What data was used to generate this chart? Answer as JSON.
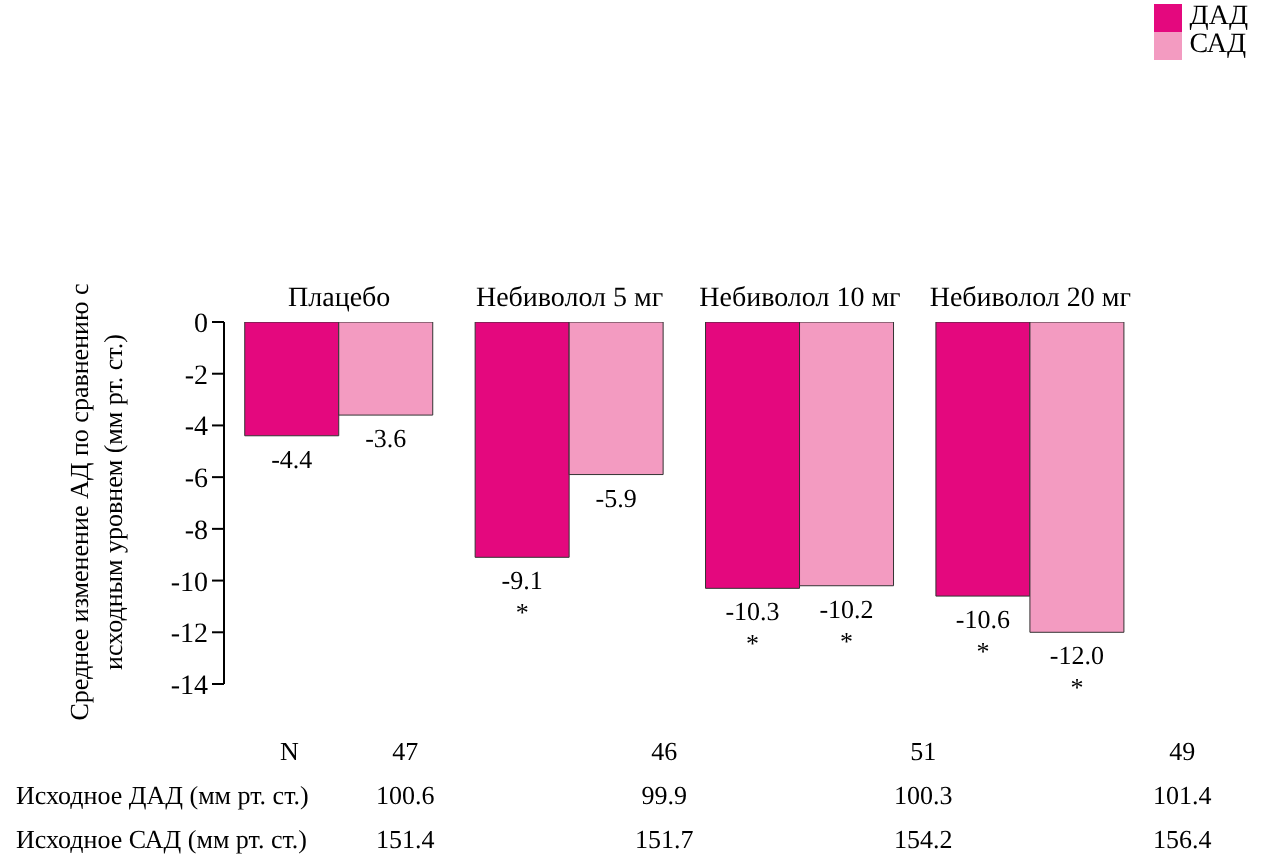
{
  "chart_data": {
    "type": "bar",
    "ylabel": "Среднее изменение АД по сравнению с исходным уровнем (мм рт. ст.)",
    "categories": [
      "Плацебо",
      "Небиволол 5 мг",
      "Небиволол 10 мг",
      "Небиволол 20 мг"
    ],
    "series": [
      {
        "name": "ДАД",
        "color": "#e4087e",
        "values": [
          -4.4,
          -9.1,
          -10.3,
          -10.6
        ],
        "value_labels": [
          "-4.4",
          "-9.1 *",
          "-10.3 *",
          "-10.6 *"
        ]
      },
      {
        "name": "САД",
        "color": "#f39bc1",
        "values": [
          -3.6,
          -5.9,
          -10.2,
          -12.0
        ],
        "value_labels": [
          "-3.6",
          "-5.9",
          "-10.2 *",
          "-12.0 *"
        ]
      }
    ],
    "ylim": [
      -14,
      0
    ],
    "yticks": [
      0,
      -2,
      -4,
      -6,
      -8,
      -10,
      -12,
      -14
    ],
    "grid": false,
    "legend": "top right",
    "annotations": [
      "N",
      "47",
      "46",
      "51",
      "49",
      "Исходное ДАД (мм рт. ст.)",
      "100.6",
      "99.9",
      "100.3",
      "101.4",
      "Исходное САД (мм рт. ст.)",
      "151.4",
      "151.7",
      "154.2",
      "156.4"
    ]
  }
}
